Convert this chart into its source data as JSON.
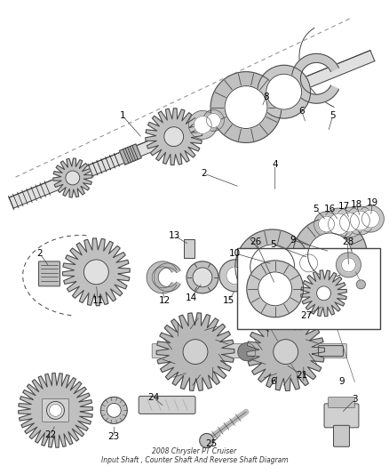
{
  "bg_color": "#f5f5f5",
  "line_color": "#444444",
  "dark_color": "#222222",
  "gray1": "#bbbbbb",
  "gray2": "#999999",
  "gray3": "#dddddd",
  "figsize": [
    4.38,
    5.33
  ],
  "dpi": 100,
  "shaft_color": "#cccccc",
  "gear_fill": "#c8c8c8",
  "bearing_fill": "#d8d8d8",
  "title": "2008 Chrysler PT Cruiser\nInput Shaft , Counter Shaft And Reverse Shaft Diagram"
}
